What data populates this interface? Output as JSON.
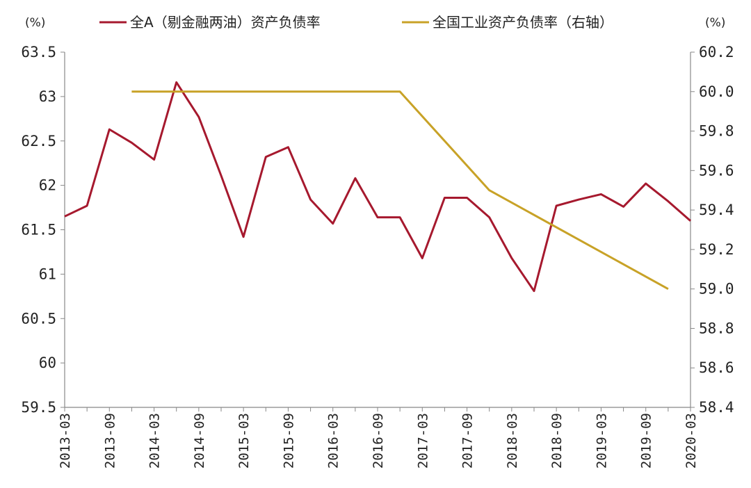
{
  "chart_data": {
    "type": "line",
    "x": [
      "2013-03",
      "2013-06",
      "2013-09",
      "2013-12",
      "2014-03",
      "2014-06",
      "2014-09",
      "2014-12",
      "2015-03",
      "2015-06",
      "2015-09",
      "2015-12",
      "2016-03",
      "2016-06",
      "2016-09",
      "2016-12",
      "2017-03",
      "2017-06",
      "2017-09",
      "2017-12",
      "2018-03",
      "2018-06",
      "2018-09",
      "2018-12",
      "2019-03",
      "2019-06",
      "2019-09",
      "2019-12",
      "2020-03"
    ],
    "x_tick_labels": [
      "2013-03",
      "2013-09",
      "2014-03",
      "2014-09",
      "2015-03",
      "2015-09",
      "2016-03",
      "2016-09",
      "2017-03",
      "2017-09",
      "2018-03",
      "2018-09",
      "2019-03",
      "2019-09",
      "2020-03"
    ],
    "left_unit": "(%)",
    "right_unit": "(%)",
    "left_ylim": [
      59.5,
      63.5
    ],
    "right_ylim": [
      58.4,
      60.2
    ],
    "left_tick_labels": [
      "63.5",
      "63",
      "62.5",
      "62",
      "61.5",
      "61",
      "60.5",
      "60",
      "59.5"
    ],
    "left_tick_values": [
      63.5,
      63,
      62.5,
      62,
      61.5,
      61,
      60.5,
      60,
      59.5
    ],
    "right_tick_labels": [
      "60.2",
      "60.0",
      "59.8",
      "59.6",
      "59.4",
      "59.2",
      "59.0",
      "58.8",
      "58.6",
      "58.4"
    ],
    "right_tick_values": [
      60.2,
      60.0,
      59.8,
      59.6,
      59.4,
      59.2,
      59.0,
      58.8,
      58.6,
      58.4
    ],
    "grid": false,
    "legend_position": "top",
    "series": [
      {
        "name": "全A（剔金融两油）资产负债率",
        "axis": "left",
        "color": "#a6192e",
        "values": [
          61.65,
          61.77,
          62.63,
          62.48,
          62.29,
          63.16,
          62.77,
          62.11,
          61.42,
          62.32,
          62.43,
          61.84,
          61.57,
          62.08,
          61.64,
          61.64,
          61.18,
          61.86,
          61.86,
          61.64,
          61.18,
          60.81,
          61.77,
          61.84,
          61.9,
          61.76,
          62.02,
          61.82,
          61.6
        ]
      },
      {
        "name": "全国工业资产负债率（右轴）",
        "axis": "right",
        "color": "#c8a227",
        "values": [
          null,
          null,
          null,
          60.0,
          null,
          null,
          null,
          null,
          null,
          null,
          null,
          null,
          null,
          null,
          null,
          60.0,
          null,
          null,
          null,
          59.5,
          null,
          null,
          null,
          null,
          null,
          null,
          null,
          59.0,
          null
        ]
      }
    ]
  }
}
